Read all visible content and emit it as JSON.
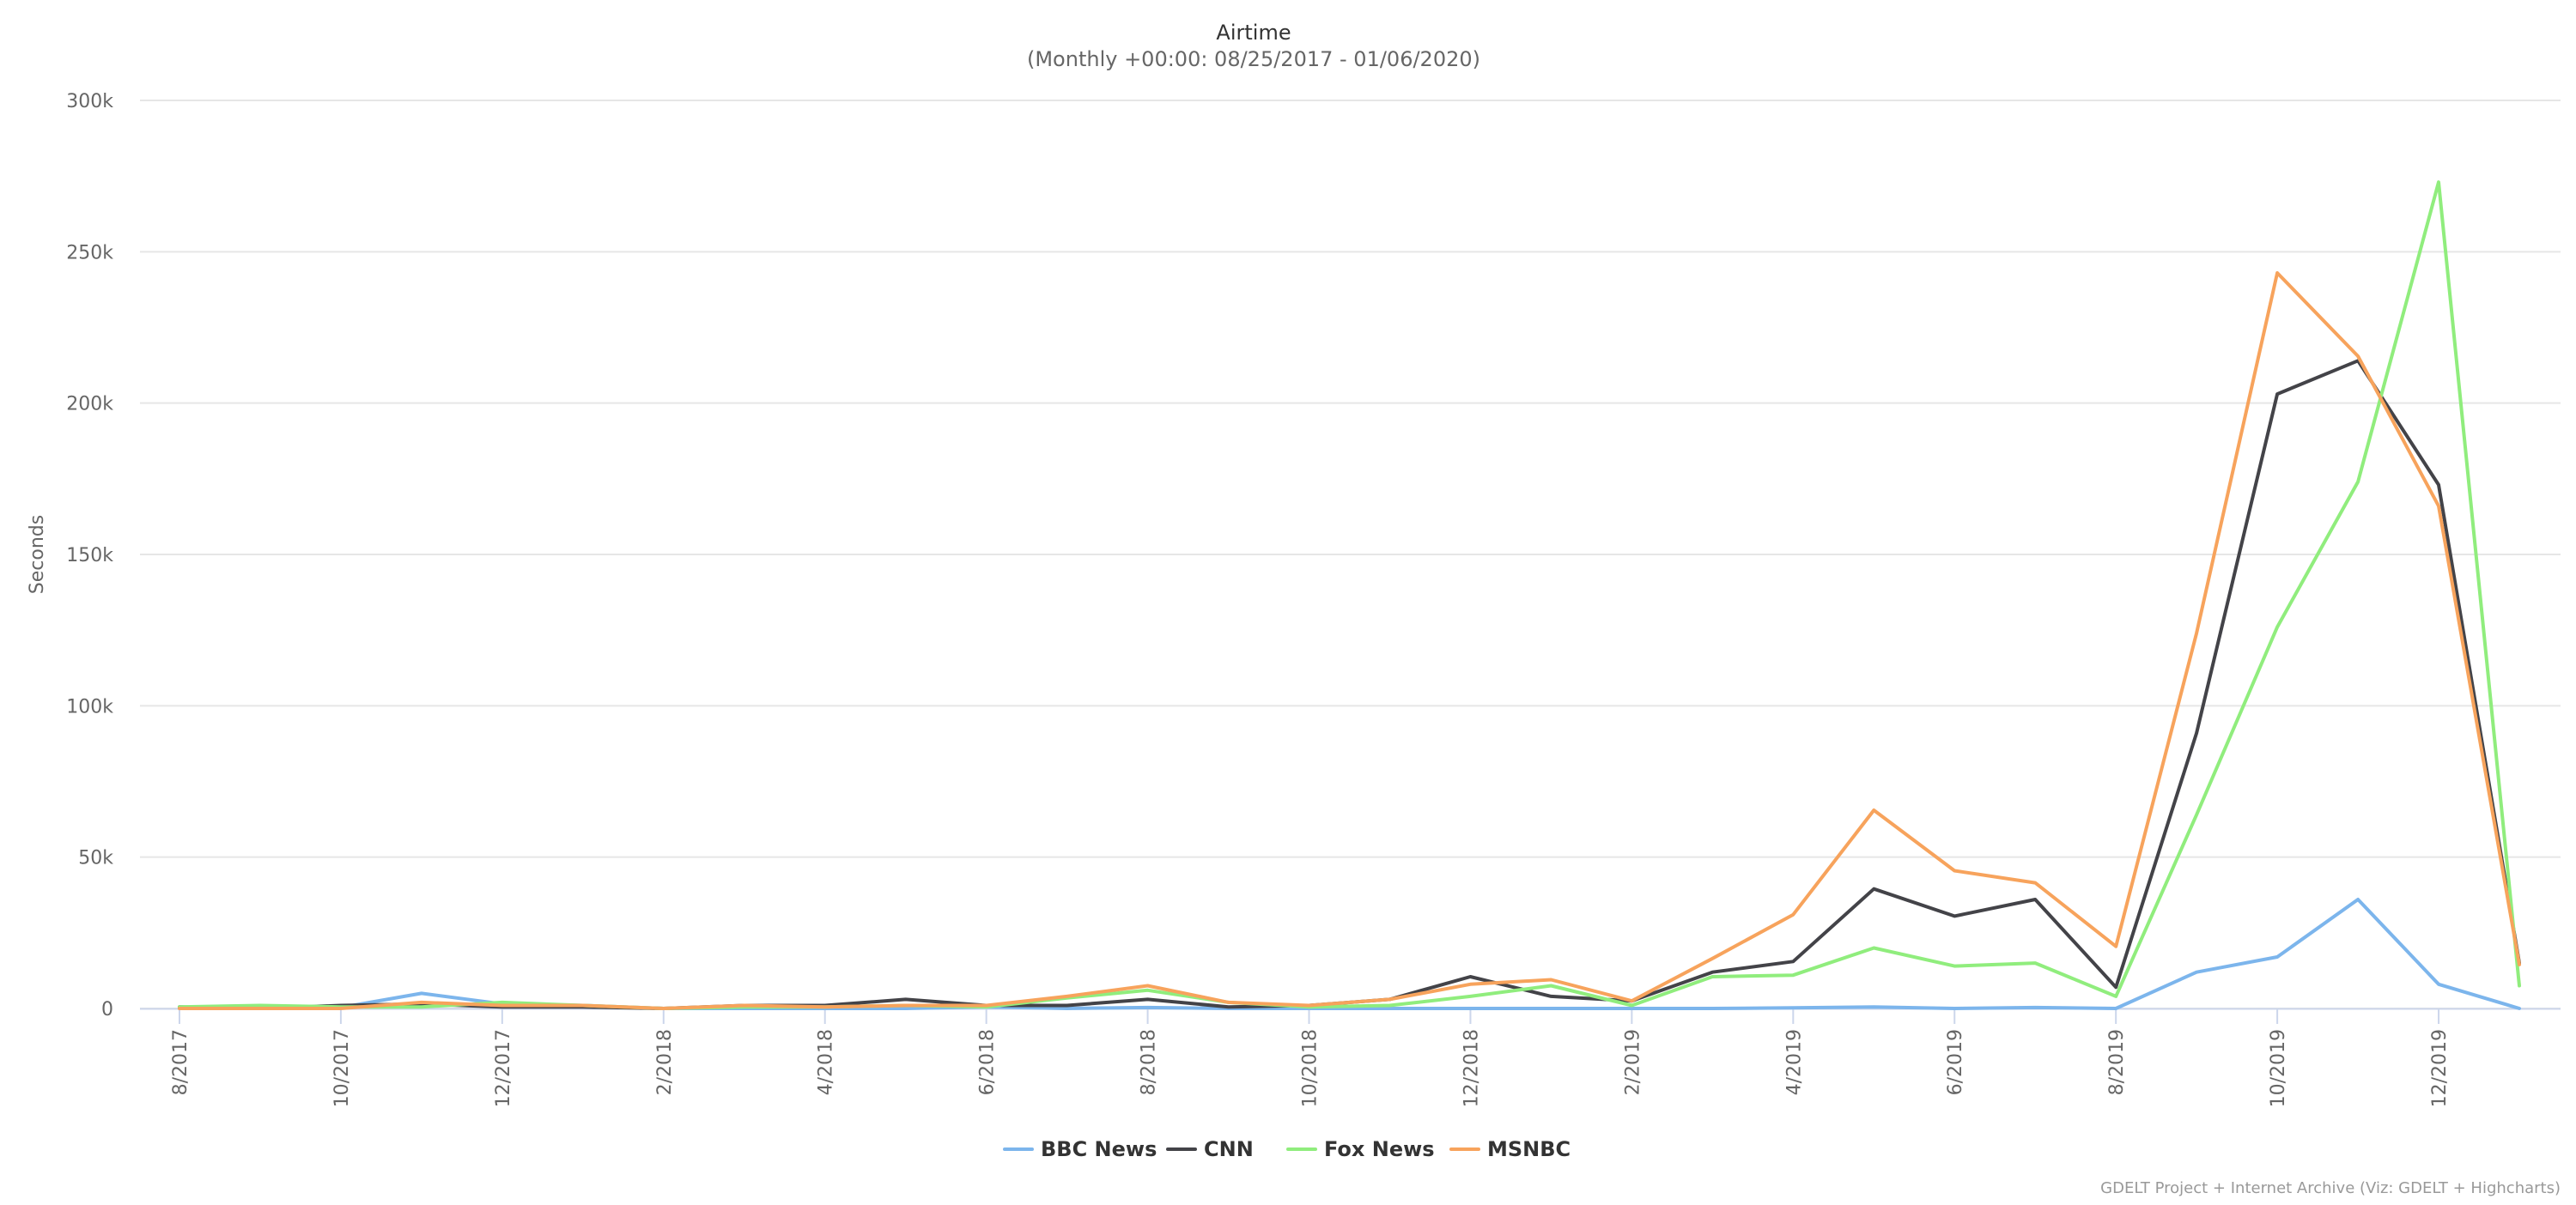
{
  "chart_data": {
    "type": "line",
    "title": "Airtime",
    "subtitle": "(Monthly +00:00: 08/25/2017 - 01/06/2020)",
    "ylabel": "Seconds",
    "xlabel": "",
    "ylim": [
      0,
      300000
    ],
    "yticks": [
      0,
      50000,
      100000,
      150000,
      200000,
      250000,
      300000
    ],
    "ytick_labels": [
      "0",
      "50k",
      "100k",
      "150k",
      "200k",
      "250k",
      "300k"
    ],
    "x": [
      "8/2017",
      "9/2017",
      "10/2017",
      "11/2017",
      "12/2017",
      "1/2018",
      "2/2018",
      "3/2018",
      "4/2018",
      "5/2018",
      "6/2018",
      "7/2018",
      "8/2018",
      "9/2018",
      "10/2018",
      "11/2018",
      "12/2018",
      "1/2019",
      "2/2019",
      "3/2019",
      "4/2019",
      "5/2019",
      "6/2019",
      "7/2019",
      "8/2019",
      "9/2019",
      "10/2019",
      "11/2019",
      "12/2019",
      "1/2020"
    ],
    "xtick_labels": [
      "8/2017",
      "10/2017",
      "12/2017",
      "2/2018",
      "4/2018",
      "6/2018",
      "8/2018",
      "10/2018",
      "12/2018",
      "2/2019",
      "4/2019",
      "6/2019",
      "8/2019",
      "10/2019",
      "12/2019"
    ],
    "grid": true,
    "legend": "bottom-center",
    "series": [
      {
        "name": "BBC News",
        "color": "#7cb5ec",
        "values": [
          0,
          500,
          300,
          5000,
          1500,
          1000,
          0,
          0,
          0,
          0,
          500,
          0,
          300,
          0,
          0,
          0,
          0,
          0,
          0,
          0,
          200,
          500,
          0,
          300,
          0,
          12000,
          17000,
          36000,
          8000,
          0
        ]
      },
      {
        "name": "CNN",
        "color": "#434348",
        "values": [
          500,
          0,
          1000,
          1500,
          500,
          500,
          0,
          1000,
          1000,
          3000,
          1000,
          1000,
          3000,
          500,
          1000,
          3000,
          10500,
          4000,
          2500,
          12000,
          15500,
          39500,
          30500,
          36000,
          7000,
          91000,
          203000,
          214000,
          173000,
          15000
        ]
      },
      {
        "name": "Fox News",
        "color": "#90ed7d",
        "values": [
          500,
          1000,
          500,
          500,
          2000,
          1000,
          0,
          500,
          500,
          1000,
          500,
          3500,
          6000,
          2000,
          500,
          1000,
          4000,
          7500,
          1000,
          10500,
          11000,
          20000,
          14000,
          15000,
          4000,
          64000,
          126000,
          174000,
          273000,
          7500
        ]
      },
      {
        "name": "MSNBC",
        "color": "#f7a35c",
        "values": [
          0,
          0,
          0,
          2000,
          1000,
          1000,
          0,
          1000,
          500,
          1000,
          1000,
          4000,
          7500,
          2000,
          1000,
          3000,
          8000,
          9500,
          2500,
          16500,
          31000,
          65500,
          45500,
          41500,
          20500,
          124000,
          243000,
          215500,
          166000,
          14500
        ]
      }
    ],
    "credits": "GDELT Project + Internet Archive (Viz: GDELT + Highcharts)"
  }
}
